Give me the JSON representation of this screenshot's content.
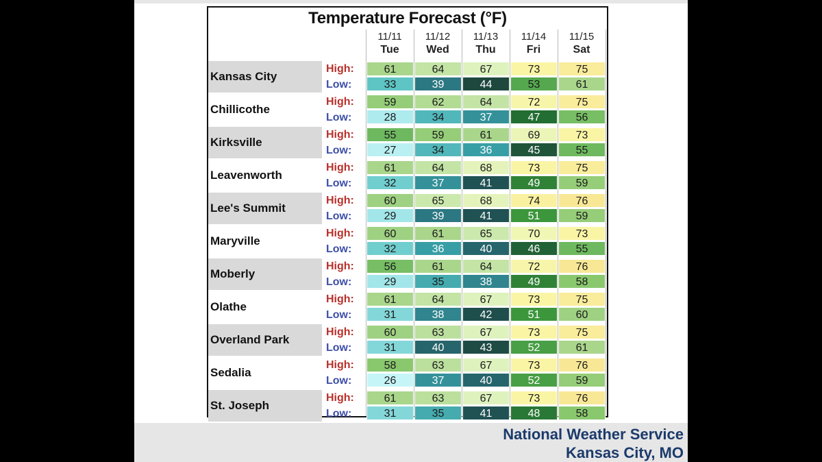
{
  "chart_data": {
    "type": "table",
    "title": "Temperature Forecast (°F)",
    "days": [
      {
        "date": "11/11",
        "dow": "Tue"
      },
      {
        "date": "11/12",
        "dow": "Wed"
      },
      {
        "date": "11/13",
        "dow": "Thu"
      },
      {
        "date": "11/14",
        "dow": "Fri"
      },
      {
        "date": "11/15",
        "dow": "Sat"
      }
    ],
    "high_label": "High:",
    "low_label": "Low:",
    "rows": [
      {
        "city": "Kansas City",
        "high": [
          61,
          64,
          67,
          73,
          75
        ],
        "low": [
          33,
          39,
          44,
          53,
          61
        ]
      },
      {
        "city": "Chillicothe",
        "high": [
          59,
          62,
          64,
          72,
          75
        ],
        "low": [
          28,
          34,
          37,
          47,
          56
        ]
      },
      {
        "city": "Kirksville",
        "high": [
          55,
          59,
          61,
          69,
          73
        ],
        "low": [
          27,
          34,
          36,
          45,
          55
        ]
      },
      {
        "city": "Leavenworth",
        "high": [
          61,
          64,
          68,
          73,
          75
        ],
        "low": [
          32,
          37,
          41,
          49,
          59
        ]
      },
      {
        "city": "Lee's Summit",
        "high": [
          60,
          65,
          68,
          74,
          76
        ],
        "low": [
          29,
          39,
          41,
          51,
          59
        ]
      },
      {
        "city": "Maryville",
        "high": [
          60,
          61,
          65,
          70,
          73
        ],
        "low": [
          32,
          36,
          40,
          46,
          55
        ]
      },
      {
        "city": "Moberly",
        "high": [
          56,
          61,
          64,
          72,
          76
        ],
        "low": [
          29,
          35,
          38,
          49,
          58
        ]
      },
      {
        "city": "Olathe",
        "high": [
          61,
          64,
          67,
          73,
          75
        ],
        "low": [
          31,
          38,
          42,
          51,
          60
        ]
      },
      {
        "city": "Overland Park",
        "high": [
          60,
          63,
          67,
          73,
          75
        ],
        "low": [
          31,
          40,
          43,
          52,
          61
        ]
      },
      {
        "city": "Sedalia",
        "high": [
          58,
          63,
          67,
          73,
          76
        ],
        "low": [
          26,
          37,
          40,
          52,
          59
        ]
      },
      {
        "city": "St. Joseph",
        "high": [
          61,
          63,
          67,
          73,
          76
        ],
        "low": [
          31,
          35,
          41,
          48,
          58
        ]
      }
    ]
  },
  "footer": {
    "line1": "National Weather Service",
    "line2": "Kansas City, MO"
  },
  "colors": {
    "city_band": "#d9d9d9",
    "high_label": "#b8302b",
    "low_label": "#3d4fa8",
    "footer_text": "#1b3a6b"
  }
}
